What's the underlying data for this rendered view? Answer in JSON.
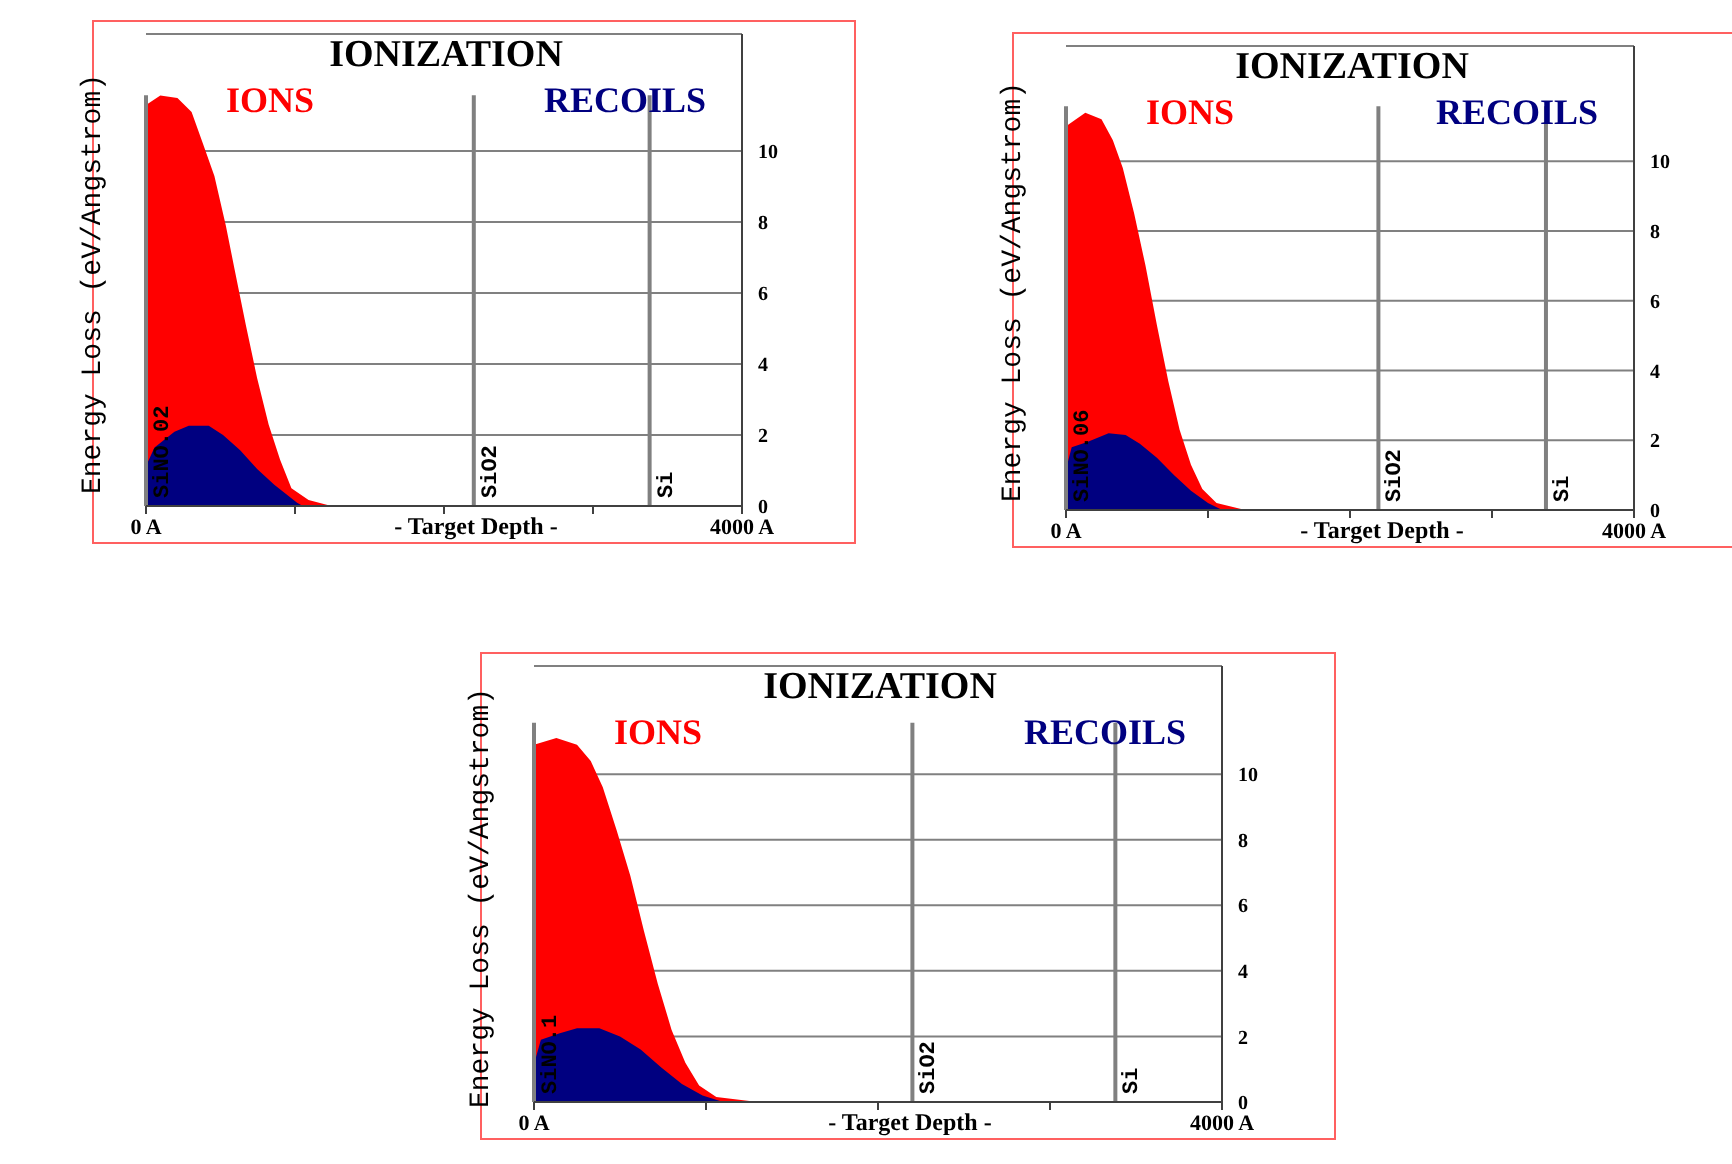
{
  "chart_data": [
    {
      "type": "area",
      "title": "IONIZATION",
      "xlabel": "- Target Depth -",
      "ylabel": "Energy Loss (eV/Angstrom)",
      "grid": "y",
      "xlim": [
        0,
        4000
      ],
      "xticks": [
        {
          "value": 0,
          "label": "0 A"
        },
        {
          "value": 1000,
          "label": null
        },
        {
          "value": 2000,
          "label": null
        },
        {
          "value": 3000,
          "label": null
        },
        {
          "value": 4000,
          "label": "4000 A"
        }
      ],
      "ylim": [
        0,
        13.3
      ],
      "yticks": [
        0,
        2,
        4,
        6,
        8,
        10
      ],
      "series": [
        {
          "name": "IONS",
          "color": "#ff0000",
          "x": [
            0,
            96,
            211,
            306,
            383,
            459,
            536,
            593,
            670,
            746,
            823,
            900,
            976,
            1091,
            1244
          ],
          "values": [
            11.3,
            11.57,
            11.5,
            11.1,
            10.2,
            9.3,
            7.9,
            6.7,
            5.1,
            3.6,
            2.3,
            1.3,
            0.5,
            0.17,
            0
          ]
        },
        {
          "name": "RECOILS",
          "color": "#000080",
          "x": [
            0,
            57,
            191,
            287,
            421,
            517,
            632,
            746,
            861,
            1014,
            1053
          ],
          "values": [
            1.13,
            1.65,
            2.09,
            2.26,
            2.26,
            2.0,
            1.57,
            1.04,
            0.6,
            0.09,
            0
          ]
        }
      ],
      "ref_lines": [
        {
          "axis": "x",
          "value": 0,
          "label": "SiNO.02",
          "color": "#808080"
        },
        {
          "axis": "x",
          "value": 2200,
          "label": "SiO2",
          "color": "#808080"
        },
        {
          "axis": "x",
          "value": 3380,
          "label": "Si",
          "color": "#808080"
        }
      ]
    },
    {
      "type": "area",
      "title": "IONIZATION",
      "xlabel": "- Target Depth -",
      "ylabel": "Energy Loss (eV/Angstrom)",
      "grid": "y",
      "xlim": [
        0,
        4000
      ],
      "xticks": [
        {
          "value": 0,
          "label": "0 A"
        },
        {
          "value": 1000,
          "label": null
        },
        {
          "value": 2000,
          "label": null
        },
        {
          "value": 3000,
          "label": null
        },
        {
          "value": 4000,
          "label": "4000 A"
        }
      ],
      "ylim": [
        0,
        13.3
      ],
      "yticks": [
        0,
        2,
        4,
        6,
        8,
        10
      ],
      "series": [
        {
          "name": "IONS",
          "color": "#ff0000",
          "x": [
            0,
            136,
            250,
            330,
            400,
            480,
            560,
            640,
            720,
            800,
            880,
            960,
            1060,
            1262
          ],
          "values": [
            11.0,
            11.39,
            11.2,
            10.6,
            9.8,
            8.5,
            7.0,
            5.3,
            3.7,
            2.3,
            1.3,
            0.6,
            0.2,
            0
          ]
        },
        {
          "name": "RECOILS",
          "color": "#000080",
          "x": [
            0,
            40,
            150,
            300,
            420,
            520,
            640,
            760,
            880,
            1000,
            1100
          ],
          "values": [
            1.17,
            1.8,
            1.95,
            2.2,
            2.15,
            1.9,
            1.5,
            1.0,
            0.55,
            0.2,
            0
          ]
        }
      ],
      "ref_lines": [
        {
          "axis": "x",
          "value": 0,
          "label": "SiNO.06",
          "color": "#808080"
        },
        {
          "axis": "x",
          "value": 2200,
          "label": "SiO2",
          "color": "#808080"
        },
        {
          "axis": "x",
          "value": 3380,
          "label": "Si",
          "color": "#808080"
        }
      ]
    },
    {
      "type": "area",
      "title": "IONIZATION",
      "xlabel": "- Target Depth -",
      "ylabel": "Energy Loss (eV/Angstrom)",
      "grid": "y",
      "xlim": [
        0,
        4000
      ],
      "xticks": [
        {
          "value": 0,
          "label": "0 A"
        },
        {
          "value": 1000,
          "label": null
        },
        {
          "value": 2000,
          "label": null
        },
        {
          "value": 3000,
          "label": null
        },
        {
          "value": 4000,
          "label": "4000 A"
        }
      ],
      "ylim": [
        0,
        13.3
      ],
      "yticks": [
        0,
        2,
        4,
        6,
        8,
        10
      ],
      "series": [
        {
          "name": "IONS",
          "color": "#ff0000",
          "x": [
            0,
            130,
            250,
            330,
            400,
            480,
            560,
            640,
            720,
            800,
            880,
            960,
            1060,
            1300
          ],
          "values": [
            10.9,
            11.1,
            10.9,
            10.4,
            9.6,
            8.3,
            6.9,
            5.2,
            3.6,
            2.2,
            1.2,
            0.5,
            0.15,
            0
          ]
        },
        {
          "name": "RECOILS",
          "color": "#000080",
          "x": [
            0,
            40,
            150,
            250,
            380,
            500,
            620,
            740,
            860,
            980,
            1100
          ],
          "values": [
            1.15,
            1.9,
            2.1,
            2.25,
            2.25,
            2.0,
            1.6,
            1.05,
            0.55,
            0.2,
            0
          ]
        }
      ],
      "ref_lines": [
        {
          "axis": "x",
          "value": 0,
          "label": "SiNO.1",
          "color": "#808080"
        },
        {
          "axis": "x",
          "value": 2200,
          "label": "SiO2",
          "color": "#808080"
        },
        {
          "axis": "x",
          "value": 3380,
          "label": "Si",
          "color": "#808080"
        }
      ]
    }
  ]
}
